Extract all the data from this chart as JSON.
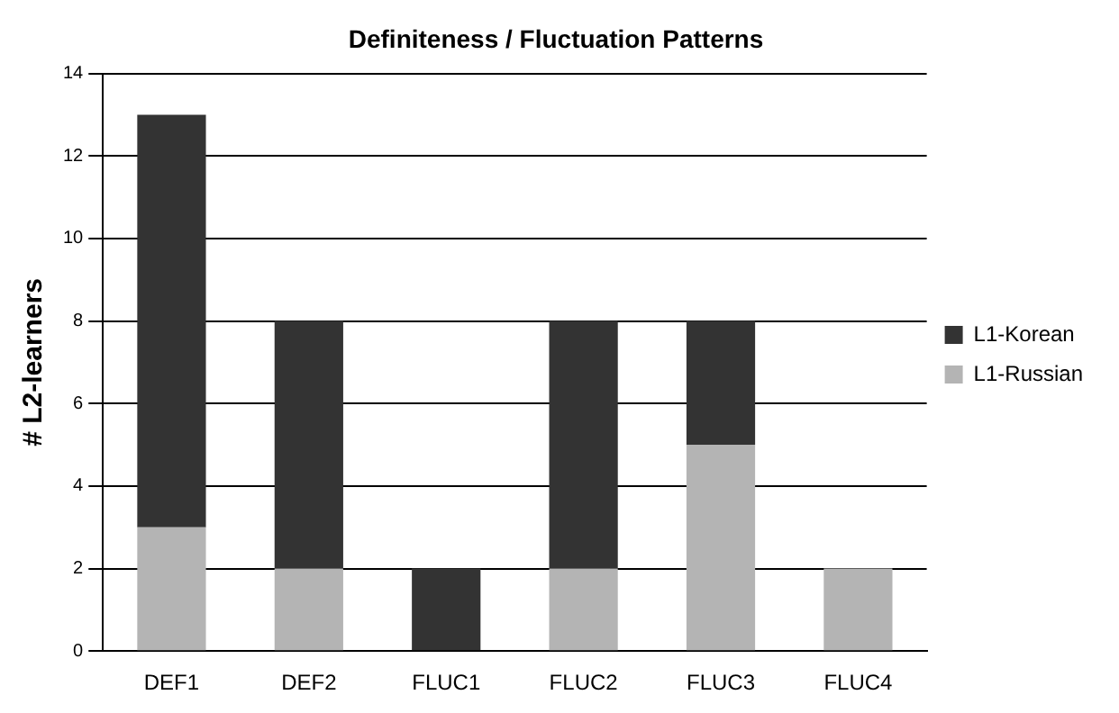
{
  "chart_data": {
    "type": "bar",
    "title": "Definiteness / Fluctuation Patterns",
    "ylabel": "# L2-learners",
    "categories": [
      "DEF1",
      "DEF2",
      "FLUC1",
      "FLUC2",
      "FLUC3",
      "FLUC4"
    ],
    "series": [
      {
        "name": "L1-Russian",
        "color": "#b4b4b4",
        "values": [
          3,
          2,
          0,
          2,
          5,
          2
        ]
      },
      {
        "name": "L1-Korean",
        "color": "#333333",
        "values": [
          10,
          6,
          2,
          6,
          3,
          0
        ]
      }
    ],
    "stacked": true,
    "ylim": [
      0,
      14
    ],
    "yticks": [
      0,
      2,
      4,
      6,
      8,
      10,
      12,
      14
    ],
    "grid": "y",
    "legend": "right"
  }
}
